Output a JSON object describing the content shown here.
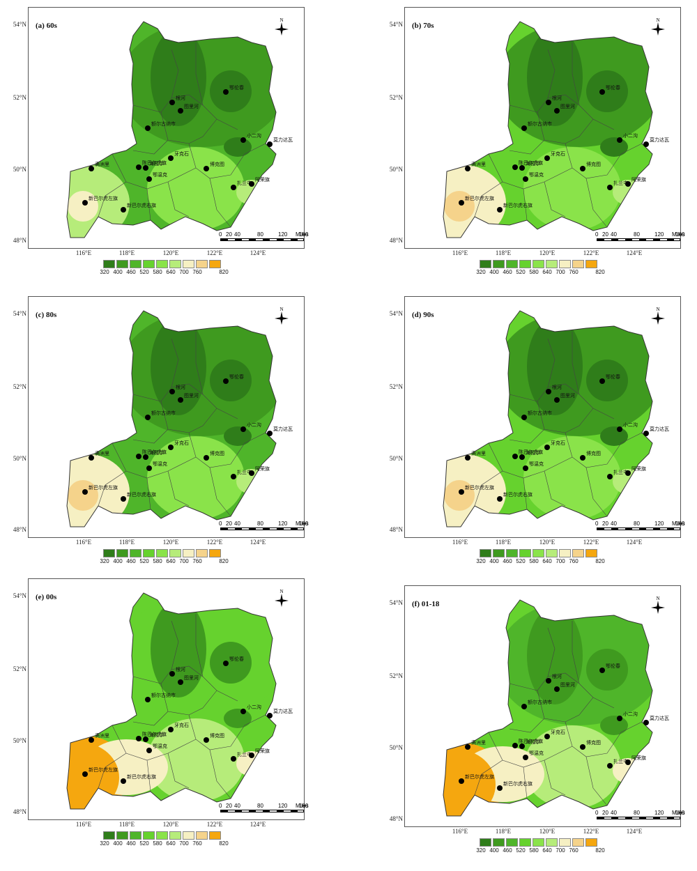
{
  "legend_colors": [
    "#2f7d1a",
    "#3f9a1f",
    "#4fb52a",
    "#66d22e",
    "#8ae34a",
    "#b6ec7a",
    "#f6f0c3",
    "#f5d38b",
    "#f5a70f"
  ],
  "legend_ticks": [
    "320",
    "400",
    "460",
    "520",
    "580",
    "640",
    "700",
    "760",
    "820"
  ],
  "lat_labels": [
    "54°N",
    "52°N",
    "50°N",
    "48°N"
  ],
  "lon_labels": [
    "116°E",
    "118°E",
    "120°E",
    "122°E",
    "124°E"
  ],
  "scale_labels": [
    "0",
    "20",
    "40",
    "80",
    "120",
    "160"
  ],
  "scale_unit": "Miles",
  "compass_label": "N",
  "panels": [
    {
      "title": "(a) 60s"
    },
    {
      "title": "(b) 70s"
    },
    {
      "title": "(c) 80s"
    },
    {
      "title": "(d) 90s"
    },
    {
      "title": "(e) 00s"
    },
    {
      "title": "(f) 01-18"
    }
  ],
  "stations": [
    {
      "name": "鄂伦春"
    },
    {
      "name": "根河"
    },
    {
      "name": "图里河"
    },
    {
      "name": "额尔古纳市"
    },
    {
      "name": "小二沟"
    },
    {
      "name": "莫力达瓦"
    },
    {
      "name": "满洲里"
    },
    {
      "name": "陈巴尔虎旗"
    },
    {
      "name": "海拉尔"
    },
    {
      "name": "牙克石"
    },
    {
      "name": "博克图"
    },
    {
      "name": "鄂温克"
    },
    {
      "name": "扎兰屯"
    },
    {
      "name": "阿荣旗"
    },
    {
      "name": "新巴尔虎左旗"
    },
    {
      "name": "新巴尔虎右旗"
    }
  ]
}
